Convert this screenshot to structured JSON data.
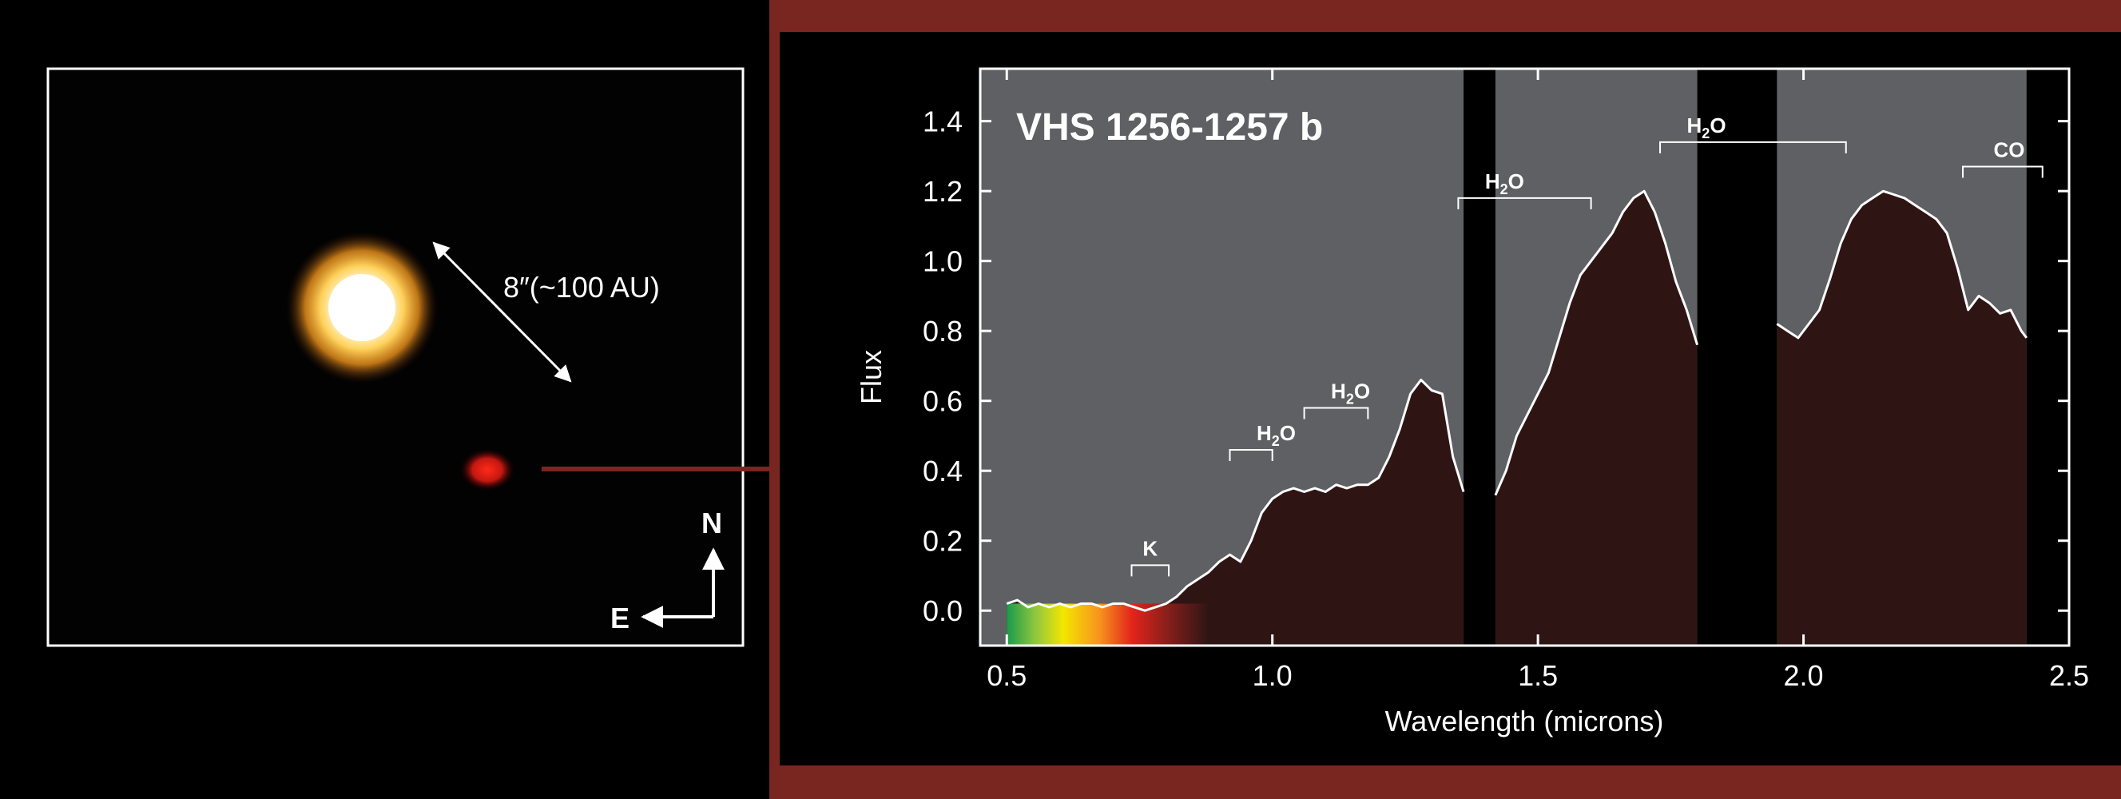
{
  "image": {
    "scale_label": "8″(~100 AU)",
    "compass_north": "N",
    "compass_east": "E"
  },
  "colors": {
    "frame": "#7a2620",
    "plot_background": "#5f6063",
    "spectrum_fill": "#2e1514",
    "spectrum_line": "#ffffff",
    "gap": "#000000"
  },
  "chart_data": {
    "type": "line",
    "title": "VHS 1256-1257 b",
    "xlabel": "Wavelength (microns)",
    "ylabel": "Flux",
    "xlim": [
      0.45,
      2.5
    ],
    "ylim": [
      -0.1,
      1.55
    ],
    "x_ticks": [
      0.5,
      1.0,
      1.5,
      2.0,
      2.5
    ],
    "x_tick_labels": [
      "0.5",
      "1.0",
      "1.5",
      "2.0",
      "2.5"
    ],
    "y_ticks": [
      0.0,
      0.2,
      0.4,
      0.6,
      0.8,
      1.0,
      1.2,
      1.4
    ],
    "y_tick_labels": [
      "0.0",
      "0.2",
      "0.4",
      "0.6",
      "0.8",
      "1.0",
      "1.2",
      "1.4"
    ],
    "grid": false,
    "gaps": [
      {
        "x0": 1.36,
        "x1": 1.42
      },
      {
        "x0": 1.8,
        "x1": 1.95
      },
      {
        "x0": 2.42,
        "x1": 2.5
      }
    ],
    "features": [
      {
        "label": "K",
        "x0": 0.735,
        "x1": 0.805,
        "y": 0.13,
        "sub": ""
      },
      {
        "label": "H",
        "sub": "2",
        "tail": "O",
        "x0": 0.92,
        "x1": 1.0,
        "y": 0.46
      },
      {
        "label": "H",
        "sub": "2",
        "tail": "O",
        "x0": 1.06,
        "x1": 1.18,
        "y": 0.58
      },
      {
        "label": "H",
        "sub": "2",
        "tail": "O",
        "x0": 1.35,
        "x1": 1.6,
        "y": 1.18
      },
      {
        "label": "H",
        "sub": "2",
        "tail": "O",
        "x0": 1.73,
        "x1": 2.08,
        "y": 1.34
      },
      {
        "label": "CO",
        "sub": "",
        "tail": "",
        "x0": 2.3,
        "x1": 2.45,
        "y": 1.27
      }
    ],
    "series": [
      {
        "x": [
          0.5,
          0.52,
          0.54,
          0.56,
          0.58,
          0.6,
          0.62,
          0.64,
          0.66,
          0.68,
          0.7,
          0.72,
          0.74,
          0.76,
          0.78,
          0.8,
          0.82,
          0.84,
          0.86,
          0.88,
          0.9,
          0.92,
          0.94,
          0.96,
          0.98,
          1.0,
          1.02,
          1.04,
          1.06,
          1.08,
          1.1,
          1.12,
          1.14,
          1.16,
          1.18,
          1.2,
          1.22,
          1.24,
          1.26,
          1.28,
          1.3,
          1.32,
          1.34,
          1.36
        ],
        "y": [
          0.02,
          0.03,
          0.01,
          0.02,
          0.01,
          0.02,
          0.01,
          0.02,
          0.02,
          0.01,
          0.02,
          0.02,
          0.01,
          0.0,
          0.01,
          0.02,
          0.04,
          0.07,
          0.09,
          0.11,
          0.14,
          0.16,
          0.14,
          0.2,
          0.28,
          0.32,
          0.34,
          0.35,
          0.34,
          0.35,
          0.34,
          0.36,
          0.35,
          0.36,
          0.36,
          0.38,
          0.44,
          0.52,
          0.62,
          0.66,
          0.63,
          0.62,
          0.44,
          0.34
        ]
      },
      {
        "x": [
          1.42,
          1.44,
          1.46,
          1.48,
          1.5,
          1.52,
          1.54,
          1.56,
          1.58,
          1.6,
          1.62,
          1.64,
          1.66,
          1.68,
          1.7,
          1.72,
          1.74,
          1.76,
          1.78,
          1.8
        ],
        "y": [
          0.33,
          0.4,
          0.5,
          0.56,
          0.62,
          0.68,
          0.78,
          0.88,
          0.96,
          1.0,
          1.04,
          1.08,
          1.14,
          1.18,
          1.2,
          1.14,
          1.05,
          0.94,
          0.86,
          0.76
        ]
      },
      {
        "x": [
          1.95,
          1.97,
          1.99,
          2.01,
          2.03,
          2.05,
          2.07,
          2.09,
          2.11,
          2.13,
          2.15,
          2.17,
          2.19,
          2.21,
          2.23,
          2.25,
          2.27,
          2.29,
          2.31,
          2.33,
          2.35,
          2.37,
          2.39,
          2.41,
          2.42
        ],
        "y": [
          0.82,
          0.8,
          0.78,
          0.82,
          0.86,
          0.95,
          1.05,
          1.12,
          1.16,
          1.18,
          1.2,
          1.19,
          1.18,
          1.16,
          1.14,
          1.12,
          1.08,
          0.98,
          0.86,
          0.9,
          0.88,
          0.85,
          0.86,
          0.8,
          0.78
        ]
      }
    ]
  }
}
